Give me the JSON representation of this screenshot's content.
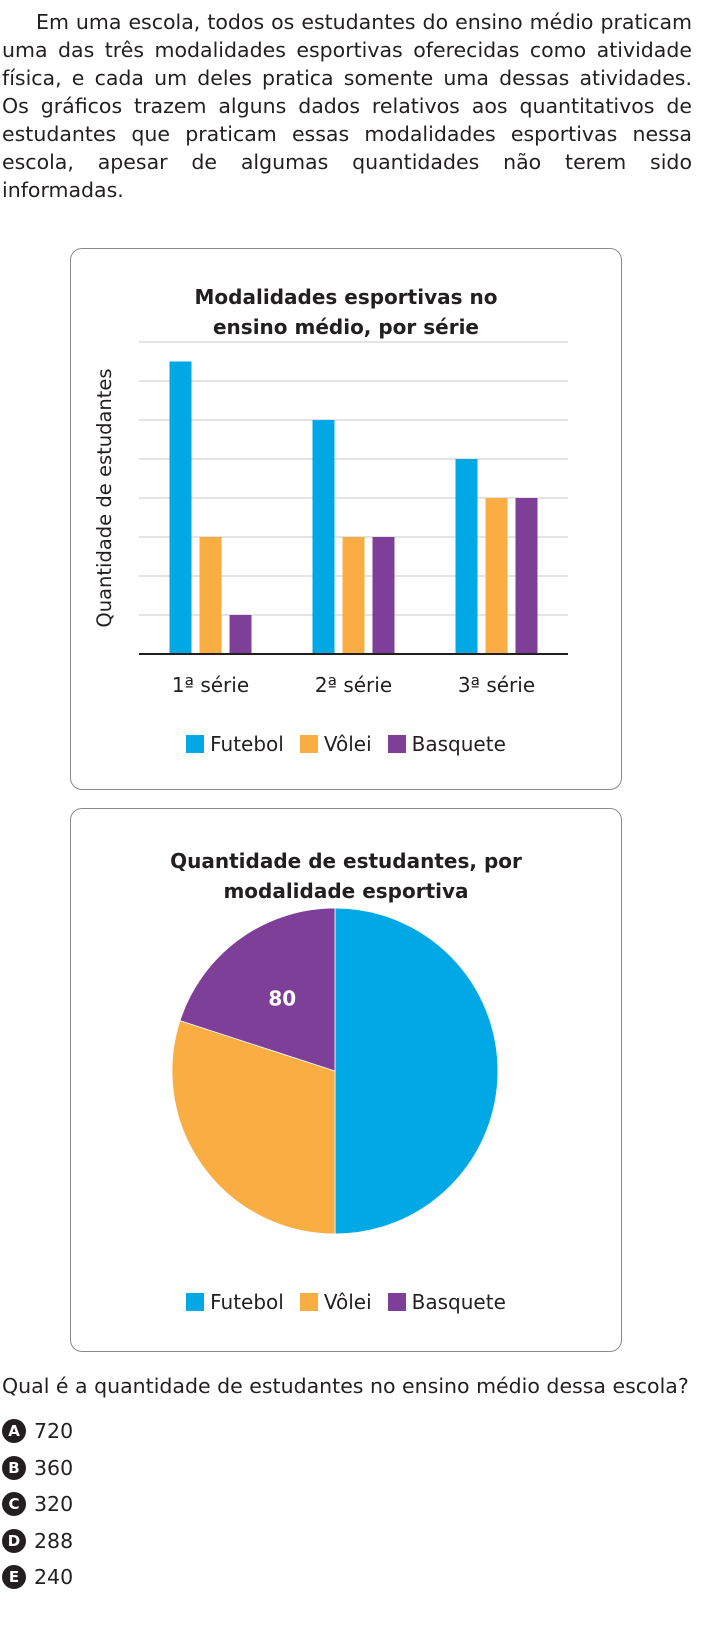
{
  "intro_text": "Em uma escola, todos os estudantes do ensino médio praticam uma das três modalidades esportivas oferecidas como atividade física, e cada um deles pratica somente uma dessas atividades. Os gráficos trazem alguns dados relativos aos quantitativos de estudantes que praticam essas modalidades esportivas nessa escola, apesar de algumas quantidades não terem sido informadas.",
  "colors": {
    "futebol": "#00a9e6",
    "volei": "#f9ad42",
    "basquete": "#7e3f98"
  },
  "chart_data": [
    {
      "type": "bar",
      "title": "Modalidades esportivas no ensino médio, por série",
      "title_lines": [
        "Modalidades esportivas no",
        "ensino médio, por série"
      ],
      "xlabel": "",
      "ylabel": "Quantidade de estudantes",
      "categories": [
        "1ª série",
        "2ª série",
        "3ª série"
      ],
      "series": [
        {
          "name": "Futebol",
          "values": [
            7.5,
            6,
            5
          ]
        },
        {
          "name": "Vôlei",
          "values": [
            3,
            3,
            4
          ]
        },
        {
          "name": "Basquete",
          "values": [
            1,
            3,
            4
          ]
        }
      ],
      "ylim": [
        0,
        8
      ],
      "y_tick_labels_shown": false,
      "grid": true,
      "legend_position": "bottom"
    },
    {
      "type": "pie",
      "title": "Quantidade de estudantes, por modalidade esportiva",
      "title_lines": [
        "Quantidade de estudantes, por",
        "modalidade esportiva"
      ],
      "labels": [
        "Futebol",
        "Vôlei",
        "Basquete"
      ],
      "values": [
        50,
        30,
        20
      ],
      "value_unit": "percent of students (estimated from slice angles)",
      "data_labels": [
        "",
        "",
        "80"
      ],
      "legend_position": "bottom"
    }
  ],
  "question": "Qual é a quantidade de estudantes no ensino médio dessa escola?",
  "options": [
    {
      "letter": "A",
      "value": "720"
    },
    {
      "letter": "B",
      "value": "360"
    },
    {
      "letter": "C",
      "value": "320"
    },
    {
      "letter": "D",
      "value": "288"
    },
    {
      "letter": "E",
      "value": "240"
    }
  ]
}
